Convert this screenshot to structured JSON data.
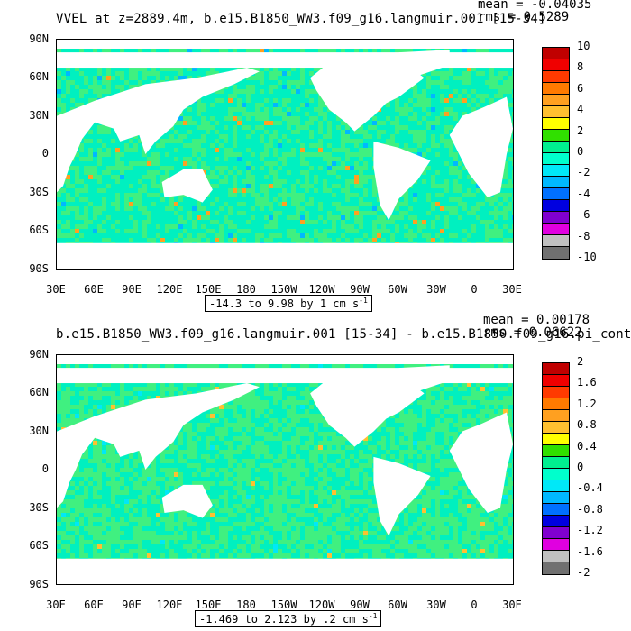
{
  "panels": [
    {
      "title": "VVEL at z=2889.4m, b.e15.B1850_WW3.f09_g16.langmuir.001 [15-34]",
      "mean": "mean = -0.04035",
      "rms": "rms = 0.5289",
      "range": "-14.3 to 9.98 by 1 cm s",
      "range_exp": "-1",
      "colorbar_labels": [
        "10",
        "8",
        "6",
        "4",
        "2",
        "0",
        "-2",
        "-4",
        "-6",
        "-8",
        "-10"
      ]
    },
    {
      "title": "b.e15.B1850_WW3.f09_g16.langmuir.001 [15-34] - b.e15.B1850.f09_g16.pi_cont",
      "mean": "mean = 0.00178",
      "rms": "rms = 0.06622",
      "range": "-1.469 to 2.123 by .2 cm s",
      "range_exp": "-1",
      "colorbar_labels": [
        "2",
        "1.6",
        "1.2",
        "0.8",
        "0.4",
        "0",
        "-0.4",
        "-0.8",
        "-1.2",
        "-1.6",
        "-2"
      ]
    }
  ],
  "y_ticks": [
    "90N",
    "60N",
    "30N",
    "0",
    "30S",
    "60S",
    "90S"
  ],
  "x_ticks": [
    "30E",
    "60E",
    "90E",
    "120E",
    "150E",
    "180",
    "150W",
    "120W",
    "90W",
    "60W",
    "30W",
    "0",
    "30E"
  ],
  "colorbar_colors": [
    "#c00000",
    "#f00000",
    "#ff3a00",
    "#ff7a00",
    "#ffa020",
    "#ffc030",
    "#ffff00",
    "#30e000",
    "#00f090",
    "#00ffcc",
    "#00e8f8",
    "#00b8ff",
    "#0070ff",
    "#0000e0",
    "#8000d0",
    "#e000e0",
    "#c0c0c0",
    "#707070"
  ],
  "colors": {
    "ocean_main": "#00f0c0",
    "ocean_alt": "#40f080",
    "land": "#ffffff"
  }
}
